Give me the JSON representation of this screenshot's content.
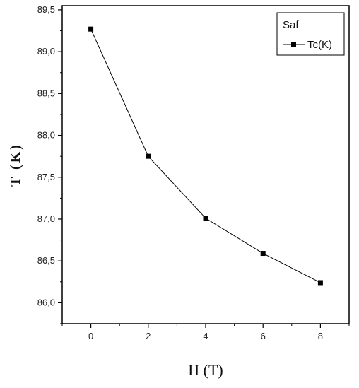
{
  "chart_data": {
    "type": "line",
    "xlabel": "H (T)",
    "ylabel": "T (K)",
    "xlim": [
      -1,
      9
    ],
    "ylim": [
      85.75,
      89.55
    ],
    "x_ticks": [
      "0",
      "2",
      "4",
      "6",
      "8"
    ],
    "y_ticks": [
      "86,0",
      "86,5",
      "87,0",
      "87,5",
      "88,0",
      "88,5",
      "89,0",
      "89,5"
    ],
    "legend": {
      "title": "Saf",
      "position": "top-right"
    },
    "series": [
      {
        "name": "Tc(K)",
        "x": [
          0,
          2,
          4,
          6,
          8
        ],
        "y": [
          89.27,
          87.75,
          87.01,
          86.59,
          86.24
        ],
        "color": "#000000",
        "marker": "square"
      }
    ]
  }
}
